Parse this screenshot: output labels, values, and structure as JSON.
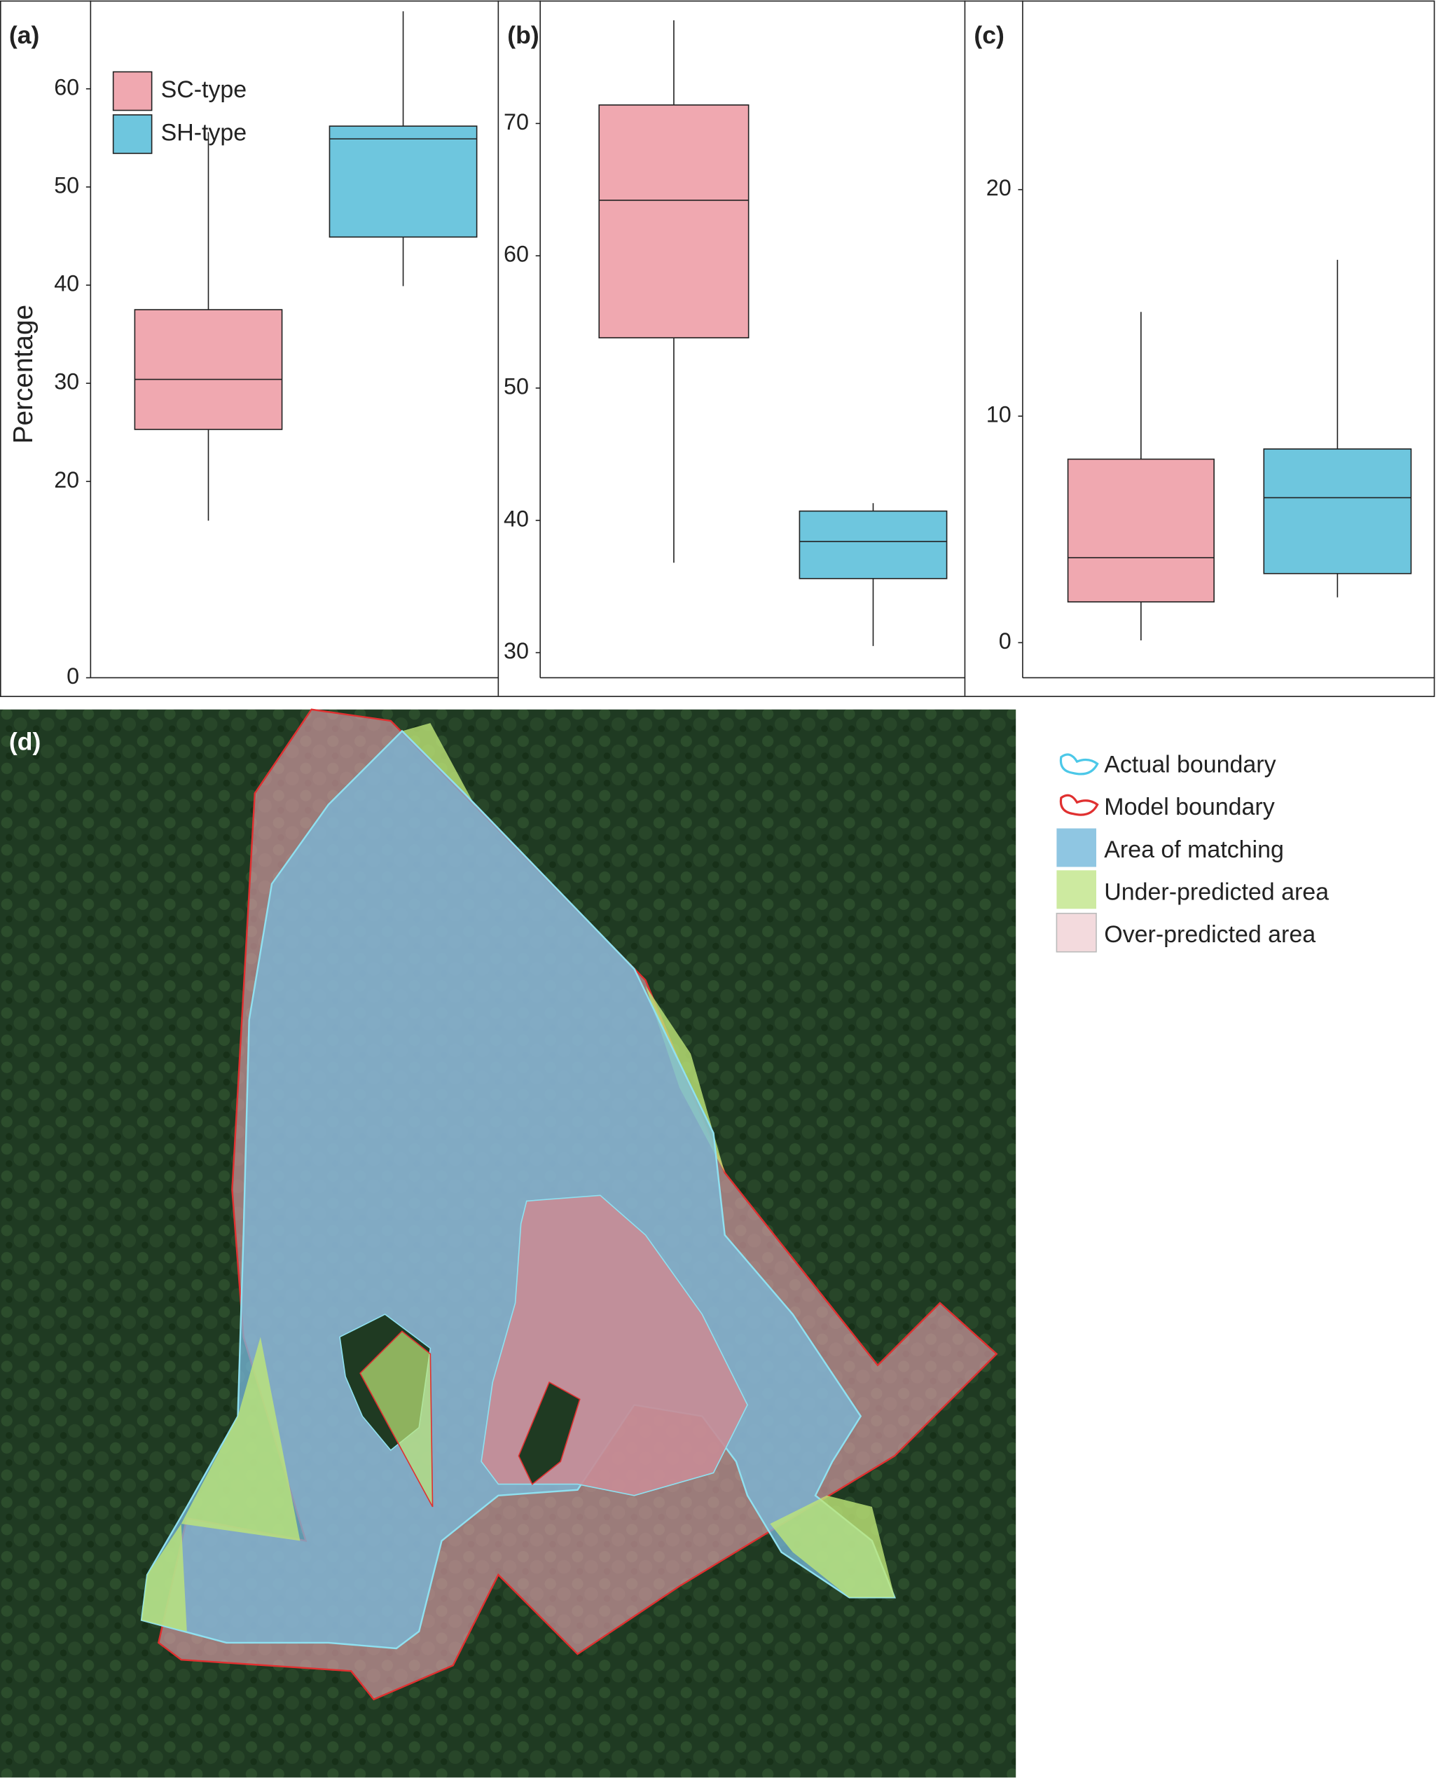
{
  "chart_data": [
    {
      "type": "box",
      "label": "(a)",
      "y_label": "Percentage",
      "ylim": [
        0,
        69
      ],
      "yticks": [
        0,
        20,
        30,
        40,
        50,
        60
      ],
      "series": [
        {
          "name": "SC-type",
          "color": "#f0a8b0",
          "min": 16.0,
          "q1": 25.3,
          "median": 30.4,
          "q3": 37.5,
          "max": 55.6
        },
        {
          "name": "SH-type",
          "color": "#6ec6de",
          "min": 39.9,
          "q1": 44.9,
          "median": 54.9,
          "q3": 56.2,
          "max": 67.9
        }
      ]
    },
    {
      "type": "box",
      "label": "(b)",
      "ylim": [
        28.1,
        79.3
      ],
      "yticks": [
        30,
        40,
        50,
        60,
        70
      ],
      "series": [
        {
          "color": "#f0a8b0",
          "min": 36.8,
          "q1": 53.8,
          "median": 64.2,
          "q3": 71.4,
          "max": 77.8
        },
        {
          "color": "#6ec6de",
          "min": 30.5,
          "q1": 35.6,
          "median": 38.4,
          "q3": 40.7,
          "max": 41.3
        }
      ]
    },
    {
      "type": "box",
      "label": "(c)",
      "ylim": [
        -1.55,
        28.35
      ],
      "yticks": [
        0,
        10,
        20
      ],
      "series": [
        {
          "color": "#f0a8b0",
          "min": 0.1,
          "q1": 1.8,
          "median": 3.75,
          "q3": 8.1,
          "max": 14.6
        },
        {
          "color": "#6ec6de",
          "min": 2.0,
          "q1": 3.05,
          "median": 6.4,
          "q3": 8.55,
          "max": 16.9
        }
      ]
    }
  ],
  "map": {
    "label": "(d)",
    "legend": [
      "Actual boundary",
      "Model boundary",
      "Area of matching",
      "Under-predicted area",
      "Over-predicted area"
    ]
  }
}
